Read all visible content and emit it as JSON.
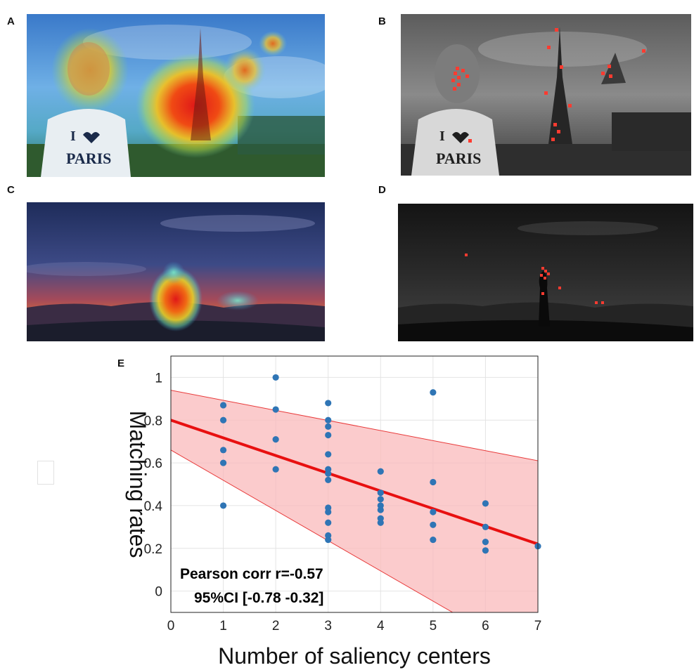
{
  "panels": {
    "a": {
      "letter": "A",
      "shirt_line1": "I",
      "shirt_line2": "PARIS"
    },
    "b": {
      "letter": "B",
      "shirt_line1": "I",
      "shirt_line2": "PARIS"
    },
    "c": {
      "letter": "C"
    },
    "d": {
      "letter": "D"
    },
    "e": {
      "letter": "E"
    }
  },
  "chart_data": {
    "type": "scatter",
    "panel_label": "E",
    "xlabel": "Number of saliency centers",
    "ylabel": "Matching rates",
    "xlim": [
      0,
      7
    ],
    "ylim": [
      -0.1,
      1.1
    ],
    "xticks": [
      0,
      1,
      2,
      3,
      4,
      5,
      6,
      7
    ],
    "yticks": [
      0,
      0.2,
      0.4,
      0.6,
      0.8,
      1
    ],
    "ytick_labels": [
      "0",
      "0.2",
      "0.4",
      "0.6",
      "0.8",
      "1"
    ],
    "grid": true,
    "points": [
      {
        "x": 1,
        "y": 0.87
      },
      {
        "x": 1,
        "y": 0.8
      },
      {
        "x": 1,
        "y": 0.66
      },
      {
        "x": 1,
        "y": 0.6
      },
      {
        "x": 1,
        "y": 0.4
      },
      {
        "x": 2,
        "y": 1.0
      },
      {
        "x": 2,
        "y": 0.85
      },
      {
        "x": 2,
        "y": 0.71
      },
      {
        "x": 2,
        "y": 0.57
      },
      {
        "x": 3,
        "y": 0.88
      },
      {
        "x": 3,
        "y": 0.8
      },
      {
        "x": 3,
        "y": 0.77
      },
      {
        "x": 3,
        "y": 0.73
      },
      {
        "x": 3,
        "y": 0.64
      },
      {
        "x": 3,
        "y": 0.57
      },
      {
        "x": 3,
        "y": 0.55
      },
      {
        "x": 3,
        "y": 0.52
      },
      {
        "x": 3,
        "y": 0.39
      },
      {
        "x": 3,
        "y": 0.37
      },
      {
        "x": 3,
        "y": 0.32
      },
      {
        "x": 3,
        "y": 0.26
      },
      {
        "x": 3,
        "y": 0.24
      },
      {
        "x": 4,
        "y": 0.56
      },
      {
        "x": 4,
        "y": 0.46
      },
      {
        "x": 4,
        "y": 0.43
      },
      {
        "x": 4,
        "y": 0.4
      },
      {
        "x": 4,
        "y": 0.38
      },
      {
        "x": 4,
        "y": 0.34
      },
      {
        "x": 4,
        "y": 0.32
      },
      {
        "x": 5,
        "y": 0.93
      },
      {
        "x": 5,
        "y": 0.51
      },
      {
        "x": 5,
        "y": 0.37
      },
      {
        "x": 5,
        "y": 0.31
      },
      {
        "x": 5,
        "y": 0.24
      },
      {
        "x": 6,
        "y": 0.41
      },
      {
        "x": 6,
        "y": 0.3
      },
      {
        "x": 6,
        "y": 0.23
      },
      {
        "x": 6,
        "y": 0.19
      },
      {
        "x": 7,
        "y": 0.21
      }
    ],
    "fit_line": {
      "x": [
        0,
        7
      ],
      "y": [
        0.8,
        0.22
      ]
    },
    "ci_band": {
      "x": [
        0,
        7
      ],
      "upper": [
        0.94,
        0.61
      ],
      "lower": [
        0.66,
        -0.33
      ]
    },
    "annotation": [
      "Pearson corr r=-0.57",
      "95%CI [-0.78 -0.32]"
    ],
    "colors": {
      "point": "#2f75b5",
      "fit_line": "#e81010",
      "band_fill": "#f9b9bb",
      "band_edge": "#e83a3a",
      "grid": "#e4e4e4",
      "axis": "#222222"
    }
  }
}
